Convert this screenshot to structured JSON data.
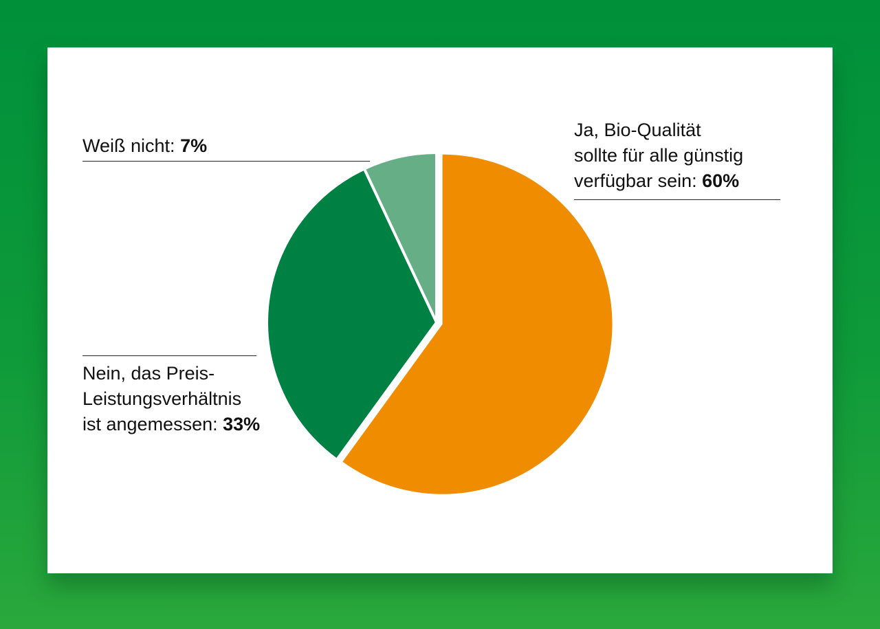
{
  "chart_data": {
    "type": "pie",
    "slices": [
      {
        "label_lines": [
          "Ja, Bio-Qualität",
          "sollte für alle günstig",
          "verfügbar sein:"
        ],
        "value": 60,
        "value_label": "60%",
        "color": "#f08c00"
      },
      {
        "label_lines": [
          "Nein, das Preis-",
          "Leistungsverhältnis",
          "ist angemessen:"
        ],
        "value": 33,
        "value_label": "33%",
        "color": "#008144"
      },
      {
        "label_lines": [
          "Weiß nicht:"
        ],
        "value": 7,
        "value_label": "7%",
        "color": "#66af86"
      }
    ],
    "start_angle": "12 o'clock",
    "direction": "clockwise",
    "exploded_slice": "Ja, Bio-Qualität sollte für alle günstig verfügbar sein",
    "legend": "none"
  }
}
